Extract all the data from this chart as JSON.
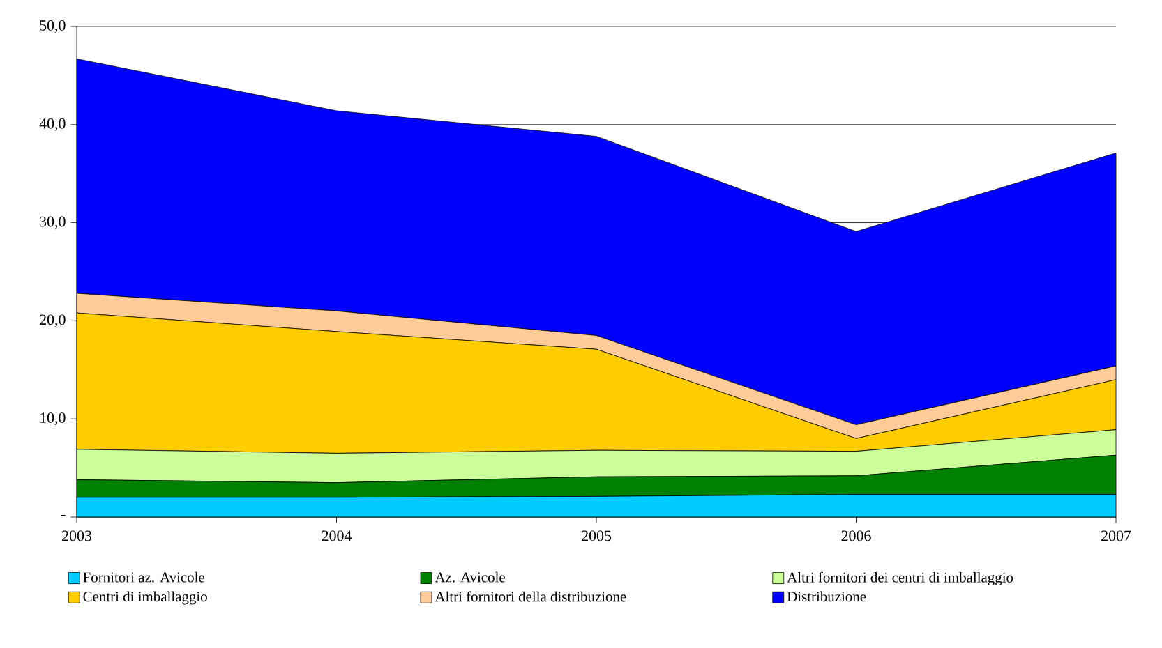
{
  "chart_data": {
    "type": "area",
    "stacked": true,
    "categories": [
      "2003",
      "2004",
      "2005",
      "2006",
      "2007"
    ],
    "series": [
      {
        "name": "Fornitori az. Avicole",
        "color": "#00ccff",
        "values": [
          2.0,
          2.0,
          2.1,
          2.3,
          2.3
        ]
      },
      {
        "name": "Az. Avicole",
        "color": "#008000",
        "values": [
          1.8,
          1.5,
          2.0,
          1.9,
          4.0
        ]
      },
      {
        "name": "Altri fornitori dei centri di imballaggio",
        "color": "#ccff99",
        "values": [
          3.1,
          3.0,
          2.7,
          2.5,
          2.6
        ]
      },
      {
        "name": "Centri di imballaggio",
        "color": "#ffcc00",
        "values": [
          13.9,
          12.4,
          10.3,
          1.3,
          5.1
        ]
      },
      {
        "name": "Altri fornitori della distribuzione",
        "color": "#ffcc99",
        "values": [
          2.0,
          2.1,
          1.4,
          1.4,
          1.4
        ]
      },
      {
        "name": "Distribuzione",
        "color": "#0000ff",
        "values": [
          23.9,
          20.4,
          20.3,
          19.7,
          21.7
        ]
      }
    ],
    "ylim": [
      0,
      50
    ],
    "yticks": [
      {
        "value": 0,
        "label": "-"
      },
      {
        "value": 10,
        "label": "10,0"
      },
      {
        "value": 20,
        "label": "20,0"
      },
      {
        "value": 30,
        "label": "30,0"
      },
      {
        "value": 40,
        "label": "40,0"
      },
      {
        "value": 50,
        "label": "50,0"
      }
    ],
    "grid": "y",
    "legend": "bottom"
  }
}
